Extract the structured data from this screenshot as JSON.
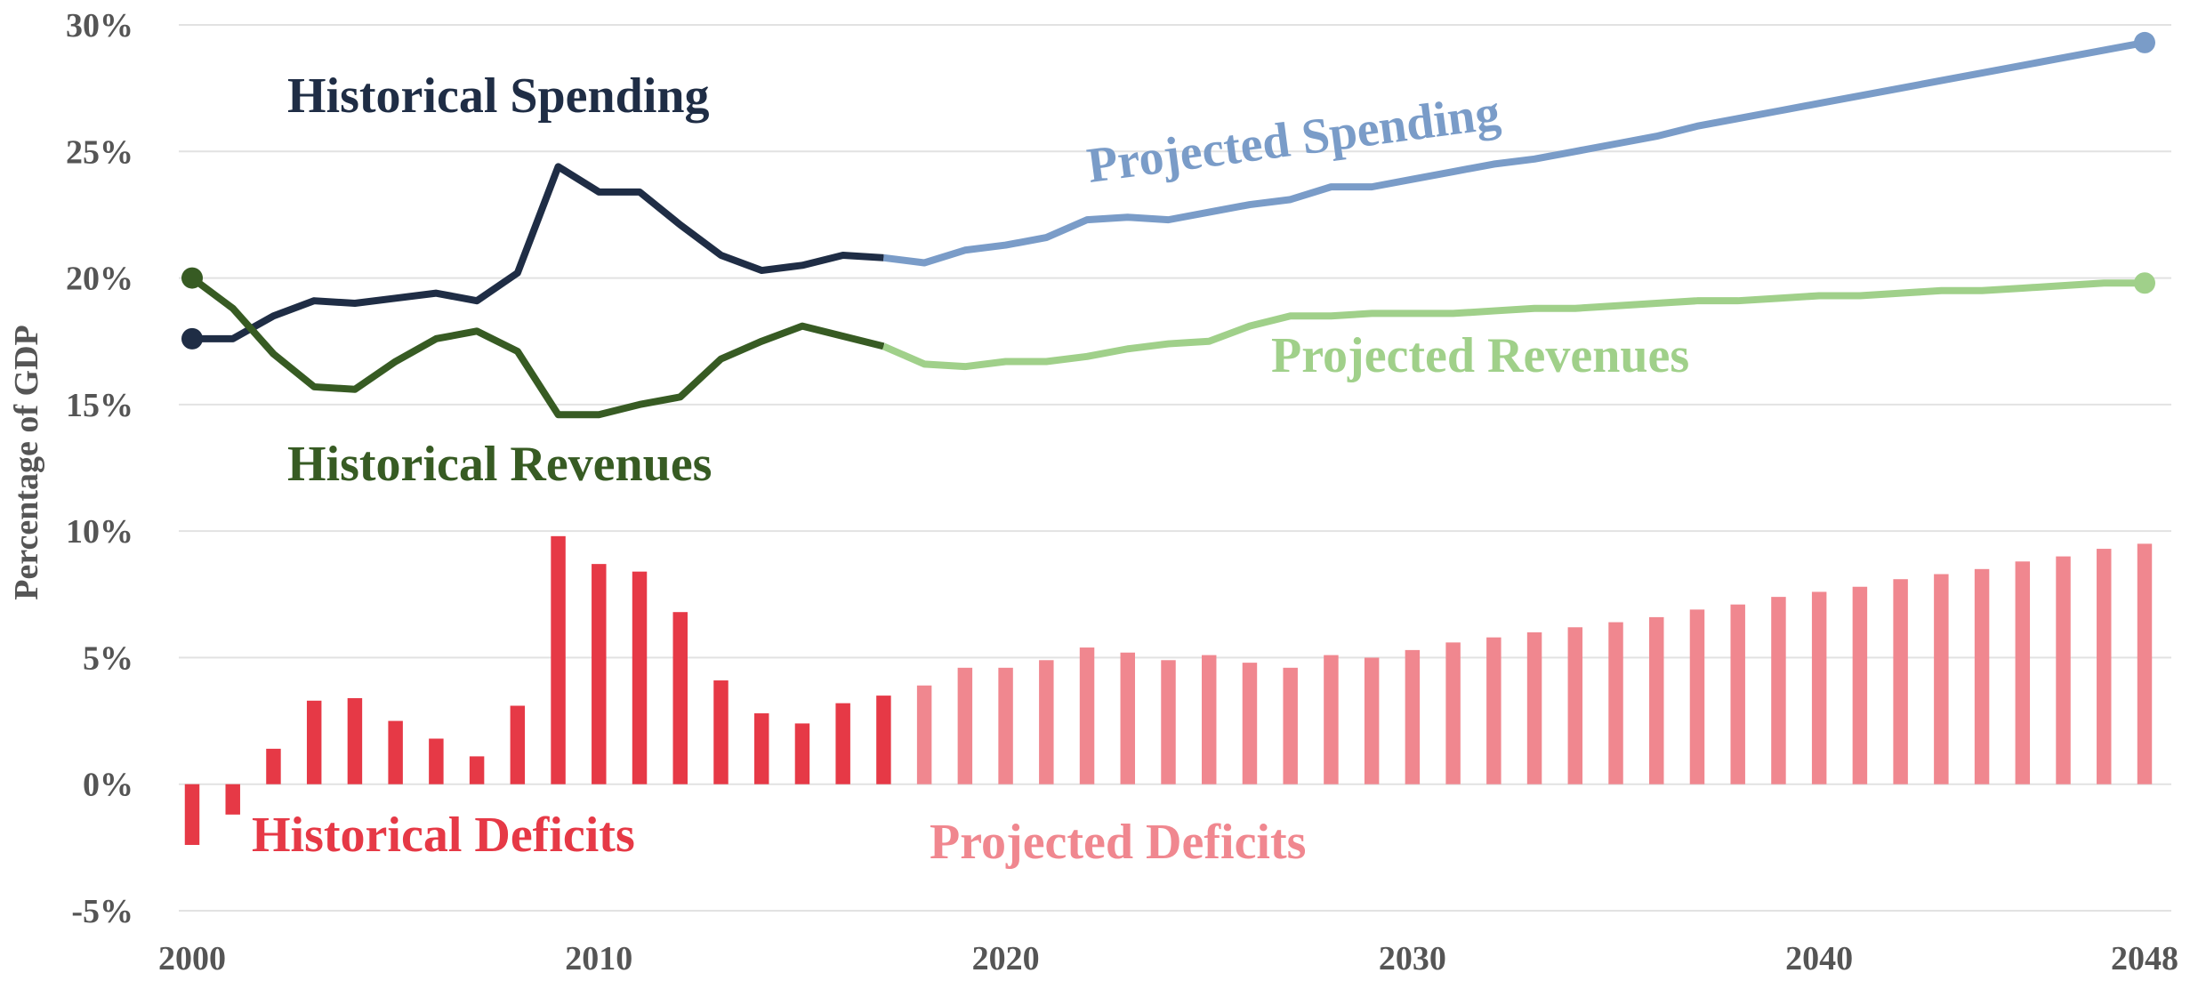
{
  "chart_data": {
    "type": "combo",
    "y_label": "Percentage of GDP",
    "x": [
      2000,
      2001,
      2002,
      2003,
      2004,
      2005,
      2006,
      2007,
      2008,
      2009,
      2010,
      2011,
      2012,
      2013,
      2014,
      2015,
      2016,
      2017,
      2018,
      2019,
      2020,
      2021,
      2022,
      2023,
      2024,
      2025,
      2026,
      2027,
      2028,
      2029,
      2030,
      2031,
      2032,
      2033,
      2034,
      2035,
      2036,
      2037,
      2038,
      2039,
      2040,
      2041,
      2042,
      2043,
      2044,
      2045,
      2046,
      2047,
      2048
    ],
    "xlim": [
      2000,
      2048
    ],
    "xticks": [
      2000,
      2010,
      2020,
      2030,
      2040,
      2048
    ],
    "ylim": [
      -5,
      30
    ],
    "yticks": [
      {
        "value": -5,
        "label": "-5%"
      },
      {
        "value": 0,
        "label": "0%"
      },
      {
        "value": 5,
        "label": "5%"
      },
      {
        "value": 10,
        "label": "10%"
      },
      {
        "value": 15,
        "label": "15%"
      },
      {
        "value": 20,
        "label": "20%"
      },
      {
        "value": 25,
        "label": "25%"
      },
      {
        "value": 30,
        "label": "30%"
      }
    ],
    "grid": true,
    "series": [
      {
        "name": "Historical Spending",
        "type": "line",
        "color": "#1f2d45",
        "values": [
          17.6,
          17.6,
          18.5,
          19.1,
          19.0,
          19.2,
          19.4,
          19.1,
          20.2,
          24.4,
          23.4,
          23.4,
          22.1,
          20.9,
          20.3,
          20.5,
          20.9,
          20.8,
          null,
          null,
          null,
          null,
          null,
          null,
          null,
          null,
          null,
          null,
          null,
          null,
          null,
          null,
          null,
          null,
          null,
          null,
          null,
          null,
          null,
          null,
          null,
          null,
          null,
          null,
          null,
          null,
          null,
          null,
          null
        ]
      },
      {
        "name": "Projected Spending",
        "type": "line",
        "color": "#7a9cc8",
        "values": [
          null,
          null,
          null,
          null,
          null,
          null,
          null,
          null,
          null,
          null,
          null,
          null,
          null,
          null,
          null,
          null,
          null,
          20.8,
          20.6,
          21.1,
          21.3,
          21.6,
          22.3,
          22.4,
          22.3,
          22.6,
          22.9,
          23.1,
          23.6,
          23.6,
          23.9,
          24.2,
          24.5,
          24.7,
          25.0,
          25.3,
          25.6,
          26.0,
          26.3,
          26.6,
          26.9,
          27.2,
          27.5,
          27.8,
          28.1,
          28.4,
          28.7,
          29.0,
          29.3
        ]
      },
      {
        "name": "Historical Revenues",
        "type": "line",
        "color": "#375b23",
        "values": [
          20.0,
          18.8,
          17.0,
          15.7,
          15.6,
          16.7,
          17.6,
          17.9,
          17.1,
          14.6,
          14.6,
          15.0,
          15.3,
          16.8,
          17.5,
          18.1,
          17.7,
          17.3,
          null,
          null,
          null,
          null,
          null,
          null,
          null,
          null,
          null,
          null,
          null,
          null,
          null,
          null,
          null,
          null,
          null,
          null,
          null,
          null,
          null,
          null,
          null,
          null,
          null,
          null,
          null,
          null,
          null,
          null,
          null
        ]
      },
      {
        "name": "Projected Revenues",
        "type": "line",
        "color": "#a0d08a",
        "values": [
          null,
          null,
          null,
          null,
          null,
          null,
          null,
          null,
          null,
          null,
          null,
          null,
          null,
          null,
          null,
          null,
          null,
          17.3,
          16.6,
          16.5,
          16.7,
          16.7,
          16.9,
          17.2,
          17.4,
          17.5,
          18.1,
          18.5,
          18.5,
          18.6,
          18.6,
          18.6,
          18.7,
          18.8,
          18.8,
          18.9,
          19.0,
          19.1,
          19.1,
          19.2,
          19.3,
          19.3,
          19.4,
          19.5,
          19.5,
          19.6,
          19.7,
          19.8,
          19.8
        ]
      },
      {
        "name": "Historical Deficits",
        "type": "bar",
        "color": "#e63946",
        "values": [
          -2.4,
          -1.2,
          1.4,
          3.3,
          3.4,
          2.5,
          1.8,
          1.1,
          3.1,
          9.8,
          8.7,
          8.4,
          6.8,
          4.1,
          2.8,
          2.4,
          3.2,
          3.5,
          null,
          null,
          null,
          null,
          null,
          null,
          null,
          null,
          null,
          null,
          null,
          null,
          null,
          null,
          null,
          null,
          null,
          null,
          null,
          null,
          null,
          null,
          null,
          null,
          null,
          null,
          null,
          null,
          null,
          null,
          null
        ]
      },
      {
        "name": "Projected Deficits",
        "type": "bar",
        "color": "#f0878f",
        "values": [
          null,
          null,
          null,
          null,
          null,
          null,
          null,
          null,
          null,
          null,
          null,
          null,
          null,
          null,
          null,
          null,
          null,
          null,
          3.9,
          4.6,
          4.6,
          4.9,
          5.4,
          5.2,
          4.9,
          5.1,
          4.8,
          4.6,
          5.1,
          5.0,
          5.3,
          5.6,
          5.8,
          6.0,
          6.2,
          6.4,
          6.6,
          6.9,
          7.1,
          7.4,
          7.6,
          7.8,
          8.1,
          8.3,
          8.5,
          8.8,
          9.0,
          9.3,
          9.5
        ]
      }
    ]
  }
}
